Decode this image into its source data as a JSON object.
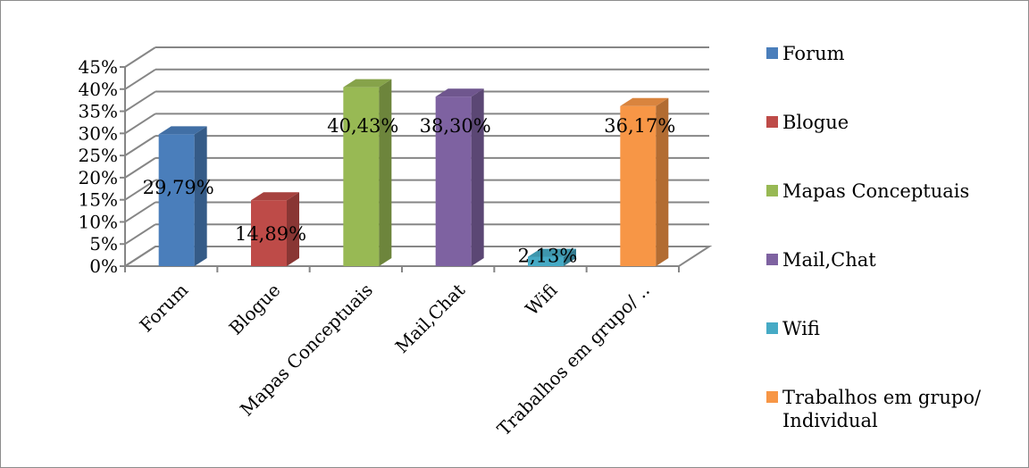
{
  "chart_data": {
    "type": "bar",
    "style": "3d-column",
    "categories": [
      "Forum",
      "Blogue",
      "Mapas Conceptuais",
      "Mail,Chat",
      "Wifi",
      "Trabalhos em grupo/ Individual"
    ],
    "category_tick_labels": [
      "Forum",
      "Blogue",
      "Mapas Conceptuais",
      "Mail,Chat",
      "Wifi",
      "Trabalhos em grupo/ .."
    ],
    "values": [
      29.79,
      14.89,
      40.43,
      38.3,
      2.13,
      36.17
    ],
    "data_labels": [
      "29,79%",
      "14,89%",
      "40,43%",
      "38,30%",
      "2,13%",
      "36,17%"
    ],
    "colors": [
      "#4a7ebb",
      "#be4b48",
      "#98b954",
      "#7e62a1",
      "#46aac5",
      "#f79646"
    ],
    "ylim": [
      0,
      45
    ],
    "yticks": [
      "0%",
      "5%",
      "10%",
      "15%",
      "20%",
      "25%",
      "30%",
      "35%",
      "40%",
      "45%"
    ],
    "grid": true,
    "legend_position": "right",
    "legend_entries": [
      {
        "label": "Forum",
        "color": "#4a7ebb"
      },
      {
        "label": "Blogue",
        "color": "#be4b48"
      },
      {
        "label": "Mapas Conceptuais",
        "color": "#98b954"
      },
      {
        "label": "Mail,Chat",
        "color": "#7e62a1"
      },
      {
        "label": "Wifi",
        "color": "#46aac5"
      },
      {
        "label": "Trabalhos em grupo/ Individual",
        "label_lines": [
          "Trabalhos em grupo/",
          "Individual"
        ],
        "color": "#f79646"
      }
    ]
  }
}
